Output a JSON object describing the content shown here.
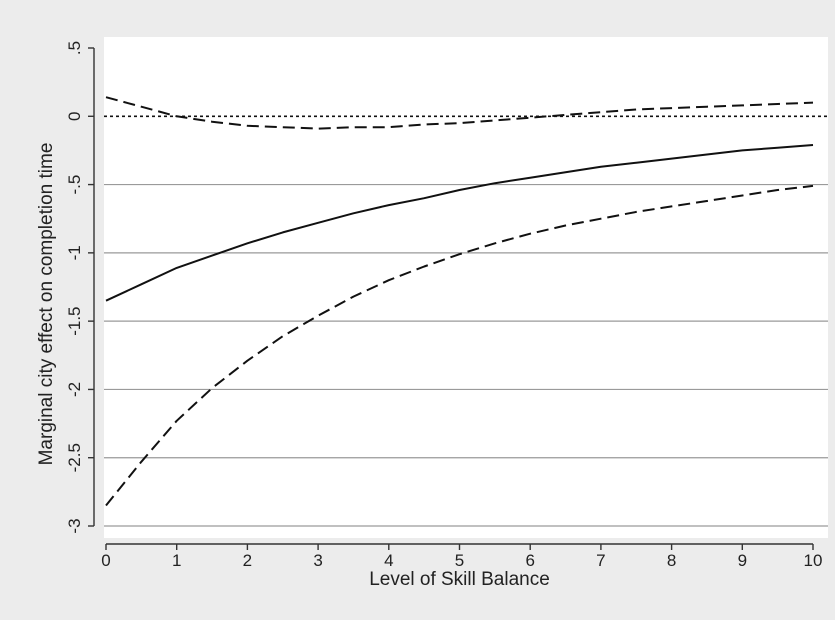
{
  "chart_data": {
    "type": "line",
    "title": "",
    "xlabel": "Level of Skill Balance",
    "ylabel": "Marginal city effect on completion time",
    "xlim": [
      0,
      10
    ],
    "ylim": [
      -3,
      0.5
    ],
    "x_ticks": [
      0,
      1,
      2,
      3,
      4,
      5,
      6,
      7,
      8,
      9,
      10
    ],
    "x_tick_labels": [
      "0",
      "1",
      "2",
      "3",
      "4",
      "5",
      "6",
      "7",
      "8",
      "9",
      "10"
    ],
    "y_ticks": [
      0.5,
      0,
      -0.5,
      -1,
      -1.5,
      -2,
      -2.5,
      -3
    ],
    "y_tick_labels": [
      ".5",
      "0",
      "-.5",
      "-1",
      "-1.5",
      "-2",
      "-2.5",
      "-3"
    ],
    "grid": true,
    "reference_line_y": 0,
    "x": [
      0,
      0.5,
      1,
      1.5,
      2,
      2.5,
      3,
      3.5,
      4,
      4.5,
      5,
      5.5,
      6,
      6.5,
      7,
      7.5,
      8,
      8.5,
      9,
      9.5,
      10
    ],
    "series": [
      {
        "style": "solid",
        "values": [
          -1.35,
          -1.23,
          -1.11,
          -1.02,
          -0.93,
          -0.85,
          -0.78,
          -0.71,
          -0.65,
          -0.6,
          -0.54,
          -0.49,
          -0.45,
          -0.41,
          -0.37,
          -0.34,
          -0.31,
          -0.28,
          -0.25,
          -0.23,
          -0.21
        ]
      },
      {
        "style": "dashed",
        "values": [
          0.14,
          0.07,
          0.0,
          -0.04,
          -0.07,
          -0.08,
          -0.09,
          -0.08,
          -0.08,
          -0.06,
          -0.05,
          -0.03,
          -0.01,
          0.01,
          0.03,
          0.05,
          0.06,
          0.07,
          0.08,
          0.09,
          0.1
        ]
      },
      {
        "style": "dashed",
        "values": [
          -2.85,
          -2.53,
          -2.23,
          -1.99,
          -1.79,
          -1.61,
          -1.46,
          -1.32,
          -1.2,
          -1.1,
          -1.01,
          -0.93,
          -0.86,
          -0.8,
          -0.75,
          -0.7,
          -0.66,
          -0.62,
          -0.58,
          -0.54,
          -0.51
        ]
      }
    ]
  },
  "colors": {
    "background": "#ececec",
    "plot_area": "#ffffff",
    "grid": "#9a9a9a",
    "line": "#111111"
  }
}
